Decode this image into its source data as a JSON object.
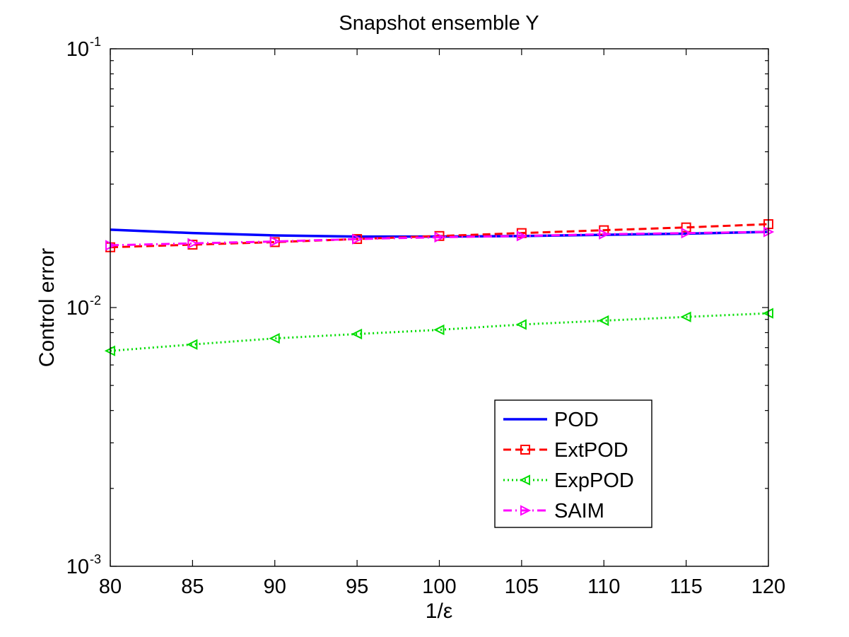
{
  "chart_data": {
    "type": "line",
    "title": "Snapshot ensemble Y",
    "xlabel": "1/ε",
    "ylabel": "Control error",
    "x": [
      80,
      85,
      90,
      95,
      100,
      105,
      110,
      115,
      120
    ],
    "xlim": [
      80,
      120
    ],
    "ylim": [
      0.001,
      0.1
    ],
    "yscale": "log",
    "xtick_labels": [
      "80",
      "85",
      "90",
      "95",
      "100",
      "105",
      "110",
      "115",
      "120"
    ],
    "ytick_labels": [
      {
        "base": "10",
        "exp": "-1"
      },
      {
        "base": "10",
        "exp": "-2"
      },
      {
        "base": "10",
        "exp": "-3"
      }
    ],
    "legend_position": "lower-right",
    "series": [
      {
        "name": "POD",
        "color": "#0000ff",
        "style": "solid",
        "marker": "none",
        "values": [
          0.02,
          0.0194,
          0.019,
          0.0188,
          0.0188,
          0.0189,
          0.0191,
          0.0193,
          0.0196
        ]
      },
      {
        "name": "ExtPOD",
        "color": "#ff0000",
        "style": "dashed",
        "marker": "square",
        "values": [
          0.0171,
          0.0175,
          0.0179,
          0.0184,
          0.0189,
          0.0194,
          0.0199,
          0.0204,
          0.021
        ]
      },
      {
        "name": "ExpPOD",
        "color": "#00dd00",
        "style": "dotted",
        "marker": "triangle-left",
        "values": [
          0.0068,
          0.0072,
          0.0076,
          0.0079,
          0.0082,
          0.0086,
          0.0089,
          0.0092,
          0.0095
        ]
      },
      {
        "name": "SAIM",
        "color": "#ff00ff",
        "style": "dashdot",
        "marker": "triangle-right",
        "values": [
          0.0174,
          0.0177,
          0.018,
          0.0184,
          0.0187,
          0.0189,
          0.0192,
          0.0194,
          0.0196
        ]
      }
    ]
  }
}
